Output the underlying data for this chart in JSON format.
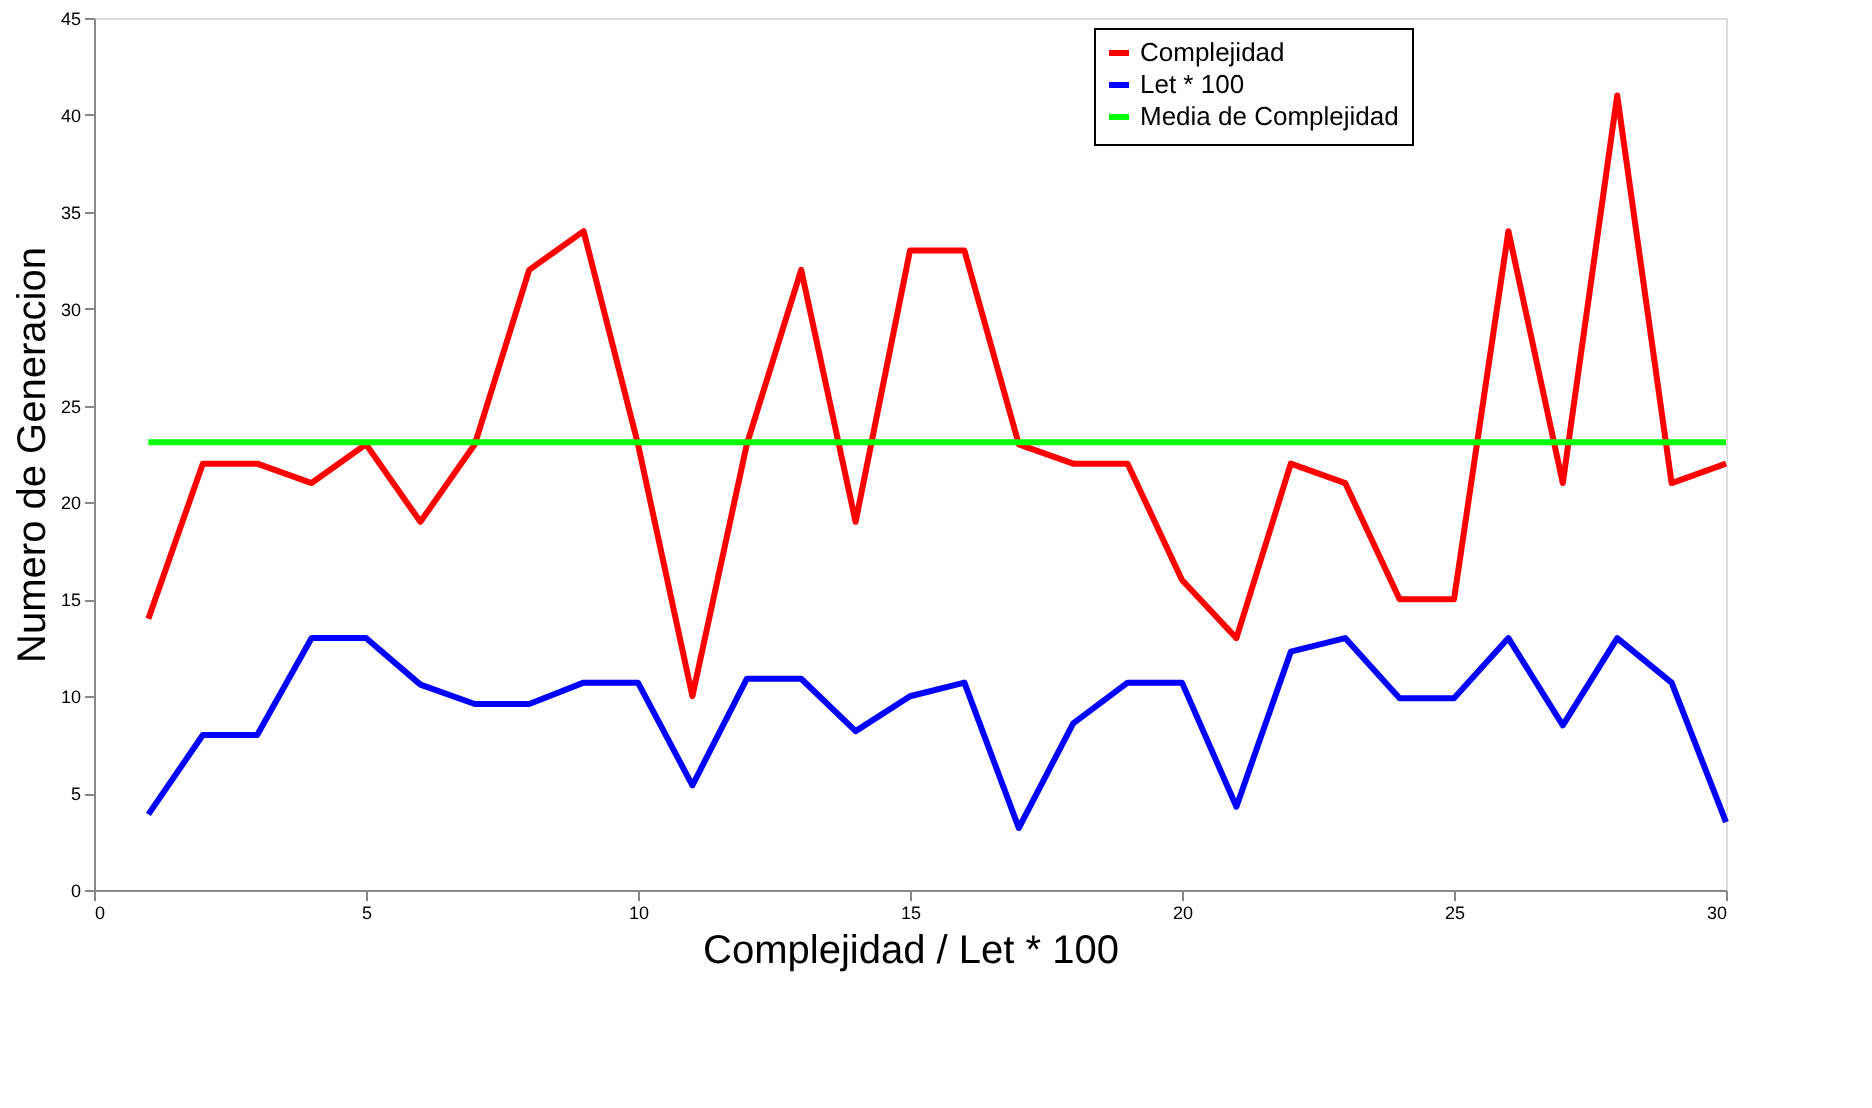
{
  "chart_data": {
    "type": "line",
    "xlabel": "Complejidad / Let * 100",
    "ylabel": "Numero de Generacion",
    "x": [
      1,
      2,
      3,
      4,
      5,
      6,
      7,
      8,
      9,
      10,
      11,
      12,
      13,
      14,
      15,
      16,
      17,
      18,
      19,
      20,
      21,
      22,
      23,
      24,
      25,
      26,
      27,
      28,
      29,
      30
    ],
    "series": [
      {
        "name": "Complejidad",
        "color": "#ff0000",
        "values": [
          14,
          22,
          22,
          21,
          23,
          19,
          23,
          32,
          34,
          23,
          10,
          23,
          32,
          19,
          33,
          33,
          23,
          22,
          22,
          16,
          13,
          22,
          21,
          15,
          15,
          34,
          21,
          41,
          21,
          22
        ]
      },
      {
        "name": "Let * 100",
        "color": "#0000ff",
        "values": [
          3.9,
          8,
          8,
          13,
          13,
          10.6,
          9.6,
          9.6,
          10.7,
          10.7,
          5.4,
          10.9,
          10.9,
          8.2,
          10,
          10.7,
          3.2,
          8.6,
          10.7,
          10.7,
          4.3,
          12.3,
          13,
          9.9,
          9.9,
          13,
          8.5,
          13,
          10.7,
          3.5
        ]
      },
      {
        "name": "Media de Complejidad",
        "color": "#00ff00",
        "values": [
          23.1,
          23.1,
          23.1,
          23.1,
          23.1,
          23.1,
          23.1,
          23.1,
          23.1,
          23.1,
          23.1,
          23.1,
          23.1,
          23.1,
          23.1,
          23.1,
          23.1,
          23.1,
          23.1,
          23.1,
          23.1,
          23.1,
          23.1,
          23.1,
          23.1,
          23.1,
          23.1,
          23.1,
          23.1,
          23.1
        ]
      }
    ],
    "xlim": [
      0,
      30
    ],
    "xticks": [
      0,
      5,
      10,
      15,
      20,
      25,
      30
    ],
    "ylim": [
      0,
      45
    ],
    "yticks": [
      0,
      5,
      10,
      15,
      20,
      25,
      30,
      35,
      40,
      45
    ],
    "grid": false,
    "legend": "top right",
    "marker": "none",
    "line_style": "solid"
  }
}
